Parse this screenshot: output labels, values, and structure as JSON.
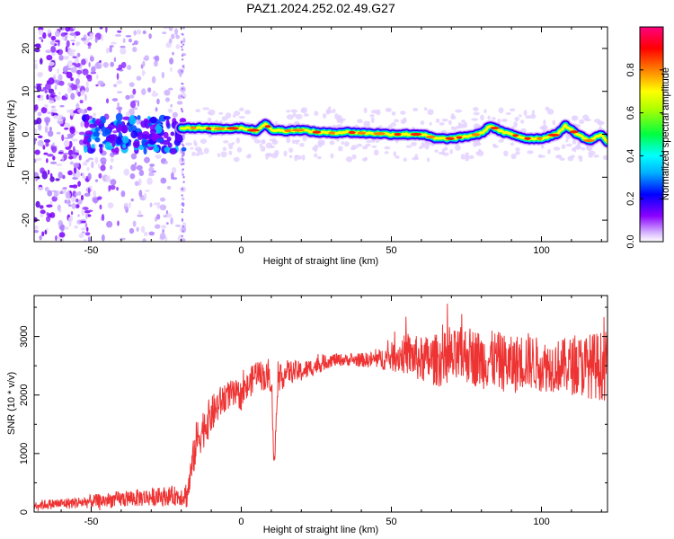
{
  "title": "PAZ1.2024.252.02.49.G27",
  "chart_data": [
    {
      "type": "heatmap",
      "xlabel": "Height of straight line (km)",
      "ylabel": "Frequency (Hz)",
      "xlim": [
        -69,
        122
      ],
      "ylim": [
        -25,
        25
      ],
      "xticks": [
        -50,
        0,
        50,
        100
      ],
      "yticks": [
        -20,
        -10,
        0,
        10,
        20
      ],
      "colorbar": {
        "label": "Normalized spectral amplitude",
        "range": [
          0,
          1
        ],
        "ticks": [
          "0.0",
          "0.2",
          "0.4",
          "0.6",
          "0.8"
        ],
        "colormap": [
          "#ffffff",
          "#8a00ff",
          "#0000ff",
          "#00ffff",
          "#00ff00",
          "#ffff00",
          "#ff8000",
          "#ff0000",
          "#ff0080"
        ]
      },
      "ridge": {
        "x": [
          -20,
          -15,
          -10,
          -5,
          0,
          5,
          8,
          10,
          15,
          20,
          25,
          30,
          35,
          40,
          45,
          50,
          55,
          60,
          65,
          70,
          75,
          80,
          83,
          87,
          90,
          95,
          100,
          105,
          108,
          112,
          116,
          120,
          122
        ],
        "freq_hz": [
          1.5,
          1.5,
          1.3,
          1.3,
          1.5,
          0.8,
          2.5,
          1.0,
          0.8,
          1.0,
          0.5,
          0.3,
          0.5,
          0.3,
          0.2,
          0.0,
          0.0,
          0.0,
          -1.0,
          -1.0,
          -0.5,
          0.2,
          2.0,
          0.5,
          0.0,
          -1.0,
          -1.0,
          0.0,
          2.0,
          0.0,
          -1.5,
          0.0,
          -2.0
        ]
      },
      "scatter_region_x": [
        -69,
        -19
      ]
    },
    {
      "type": "line",
      "xlabel": "Height of straight line (km)",
      "ylabel": "SNR (10 * v/v)",
      "xlim": [
        -69,
        122
      ],
      "ylim": [
        0,
        3700
      ],
      "xticks": [
        -50,
        0,
        50,
        100
      ],
      "yticks": [
        0,
        1000,
        2000,
        3000
      ],
      "color": "#ee3333",
      "envelope": {
        "x": [
          -69,
          -55,
          -45,
          -35,
          -25,
          -20,
          -18,
          -15,
          -12,
          -8,
          -5,
          0,
          3,
          5,
          8,
          10,
          11,
          12,
          15,
          20,
          25,
          30,
          35,
          40,
          45,
          50,
          55,
          60,
          65,
          70,
          75,
          80,
          85,
          90,
          95,
          100,
          105,
          110,
          115,
          120,
          122
        ],
        "y": [
          120,
          160,
          200,
          240,
          270,
          280,
          300,
          1200,
          1500,
          1800,
          2000,
          2000,
          2200,
          2400,
          2300,
          2300,
          700,
          2200,
          2400,
          2400,
          2500,
          2600,
          2600,
          2600,
          2600,
          2650,
          2700,
          2600,
          2600,
          2600,
          2700,
          2600,
          2600,
          2500,
          2600,
          2500,
          2500,
          2500,
          2500,
          2500,
          2500
        ],
        "noise_amplitude": [
          80,
          100,
          130,
          150,
          160,
          170,
          250,
          350,
          350,
          300,
          250,
          250,
          250,
          250,
          250,
          250,
          250,
          250,
          200,
          180,
          150,
          120,
          100,
          120,
          150,
          250,
          350,
          400,
          450,
          500,
          500,
          500,
          500,
          500,
          500,
          450,
          450,
          500,
          550,
          600,
          600
        ]
      }
    }
  ]
}
